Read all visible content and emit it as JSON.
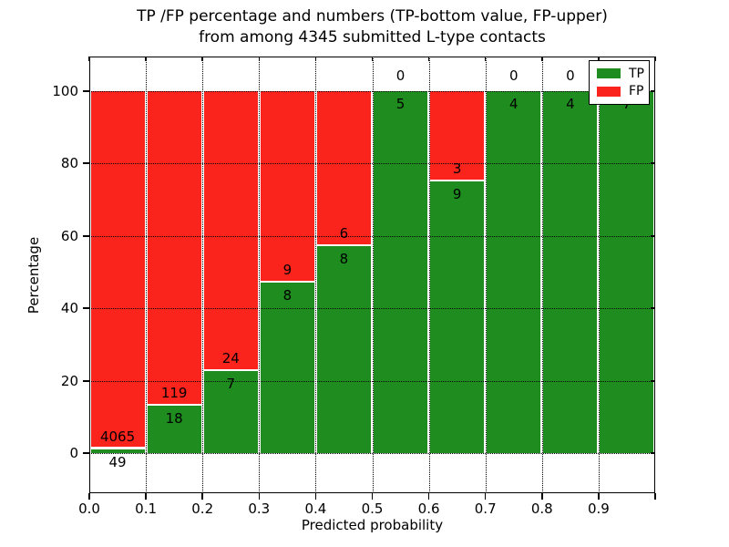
{
  "title": {
    "line1": "TP /FP percentage and numbers (TP-bottom value, FP-upper)",
    "line2": "from among 4345 submitted L-type contacts"
  },
  "axes": {
    "xlabel": "Predicted probability",
    "ylabel": "Percentage",
    "x_tick_labels": [
      "0.0",
      "0.1",
      "0.2",
      "0.3",
      "0.4",
      "0.5",
      "0.6",
      "0.7",
      "0.8",
      "0.9"
    ],
    "y_tick_labels": [
      "0",
      "20",
      "40",
      "60",
      "80",
      "100"
    ],
    "y_tick_values": [
      0,
      20,
      40,
      60,
      80,
      100
    ]
  },
  "legend": {
    "items": [
      {
        "label": "TP",
        "color": "#1e8c1e"
      },
      {
        "label": "FP",
        "color": "#fb241c"
      }
    ]
  },
  "colors": {
    "tp": "#1e8c1e",
    "fp": "#fb241c",
    "grid": "#000000",
    "background": "#ffffff",
    "text": "#000000"
  },
  "chart_data": {
    "type": "bar",
    "stacked": true,
    "title": "TP /FP percentage and numbers (TP-bottom value, FP-upper) from among 4345 submitted L-type contacts",
    "xlabel": "Predicted probability",
    "ylabel": "Percentage",
    "xlim": [
      0.0,
      1.0
    ],
    "ylim": [
      -11,
      109.5
    ],
    "grid": true,
    "legend_position": "upper right",
    "total_submitted": 4345,
    "bin_width": 0.1,
    "categories": [
      "0.0-0.1",
      "0.1-0.2",
      "0.2-0.3",
      "0.3-0.4",
      "0.4-0.5",
      "0.5-0.6",
      "0.6-0.7",
      "0.7-0.8",
      "0.8-0.9",
      "0.9-1.0"
    ],
    "series": [
      {
        "name": "TP",
        "counts": [
          49,
          18,
          7,
          8,
          8,
          5,
          9,
          4,
          4,
          7
        ],
        "pct": [
          1.2,
          13.1,
          22.6,
          47.1,
          57.1,
          100,
          75,
          100,
          100,
          100
        ]
      },
      {
        "name": "FP",
        "counts": [
          4065,
          119,
          24,
          9,
          6,
          0,
          3,
          0,
          0,
          0
        ],
        "pct": [
          98.8,
          86.9,
          77.4,
          52.9,
          42.9,
          0,
          25,
          0,
          0,
          0
        ]
      }
    ],
    "bar_labels": [
      {
        "tp": "49",
        "fp": "4065",
        "fp_label_visible": true
      },
      {
        "tp": "18",
        "fp": "119",
        "fp_label_visible": true
      },
      {
        "tp": "7",
        "fp": "24",
        "fp_label_visible": true
      },
      {
        "tp": "8",
        "fp": "9",
        "fp_label_visible": true
      },
      {
        "tp": "8",
        "fp": "6",
        "fp_label_visible": true
      },
      {
        "tp": "5",
        "fp": "0",
        "fp_label_visible": true
      },
      {
        "tp": "9",
        "fp": "3",
        "fp_label_visible": true
      },
      {
        "tp": "4",
        "fp": "0",
        "fp_label_visible": true
      },
      {
        "tp": "4",
        "fp": "0",
        "fp_label_visible": true
      },
      {
        "tp": "7",
        "fp": "0",
        "fp_label_visible": false
      }
    ]
  }
}
